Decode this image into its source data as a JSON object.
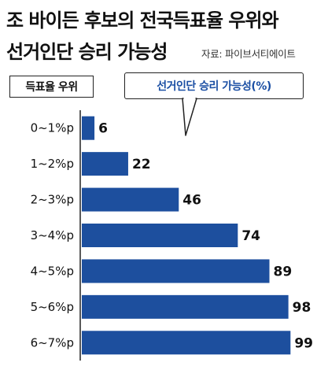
{
  "header": {
    "title_line1": "조 바이든 후보의 전국득표율 우위와",
    "title_line2": "선거인단 승리 가능성",
    "source": "자료: 파이브서티에이트"
  },
  "labels": {
    "row_header": "득표율 우위",
    "value_header": "선거인단 승리 가능성(%)"
  },
  "colors": {
    "bar": "#1d4f9e",
    "text": "#111111",
    "accent_text": "#1a4ea3"
  },
  "chart_data": {
    "type": "bar",
    "orientation": "horizontal",
    "categories": [
      "0~1%p",
      "1~2%p",
      "2~3%p",
      "3~4%p",
      "4~5%p",
      "5~6%p",
      "6~7%p"
    ],
    "series": [
      {
        "name": "선거인단 승리 가능성(%)",
        "values": [
          6,
          22,
          46,
          74,
          89,
          98,
          99
        ]
      }
    ],
    "xlim": [
      0,
      100
    ],
    "grid": false,
    "legend": "none",
    "data_labels": true
  }
}
